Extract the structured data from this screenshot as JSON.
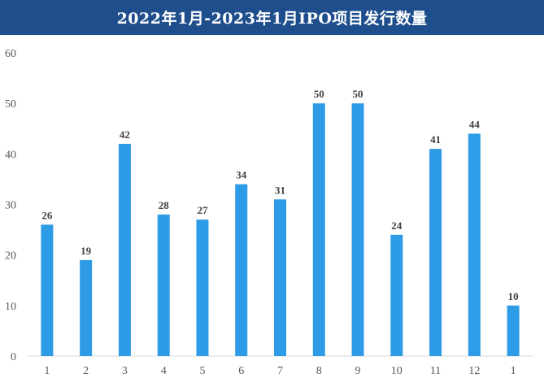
{
  "chart_data": {
    "type": "bar",
    "title": "2022年1月-2023年1月IPO项目发行数量",
    "xlabel": "",
    "ylabel": "",
    "categories": [
      "1",
      "2",
      "3",
      "4",
      "5",
      "6",
      "7",
      "8",
      "9",
      "10",
      "11",
      "12",
      "1"
    ],
    "values": [
      26,
      19,
      42,
      28,
      27,
      34,
      31,
      50,
      50,
      24,
      41,
      44,
      10
    ],
    "ylim": [
      0,
      60
    ],
    "yticks": [
      0,
      10,
      20,
      30,
      40,
      50,
      60
    ],
    "grid": false,
    "legend": "none",
    "bar_color": "#2e9be6",
    "title_bg_color": "#1f4e8c"
  }
}
